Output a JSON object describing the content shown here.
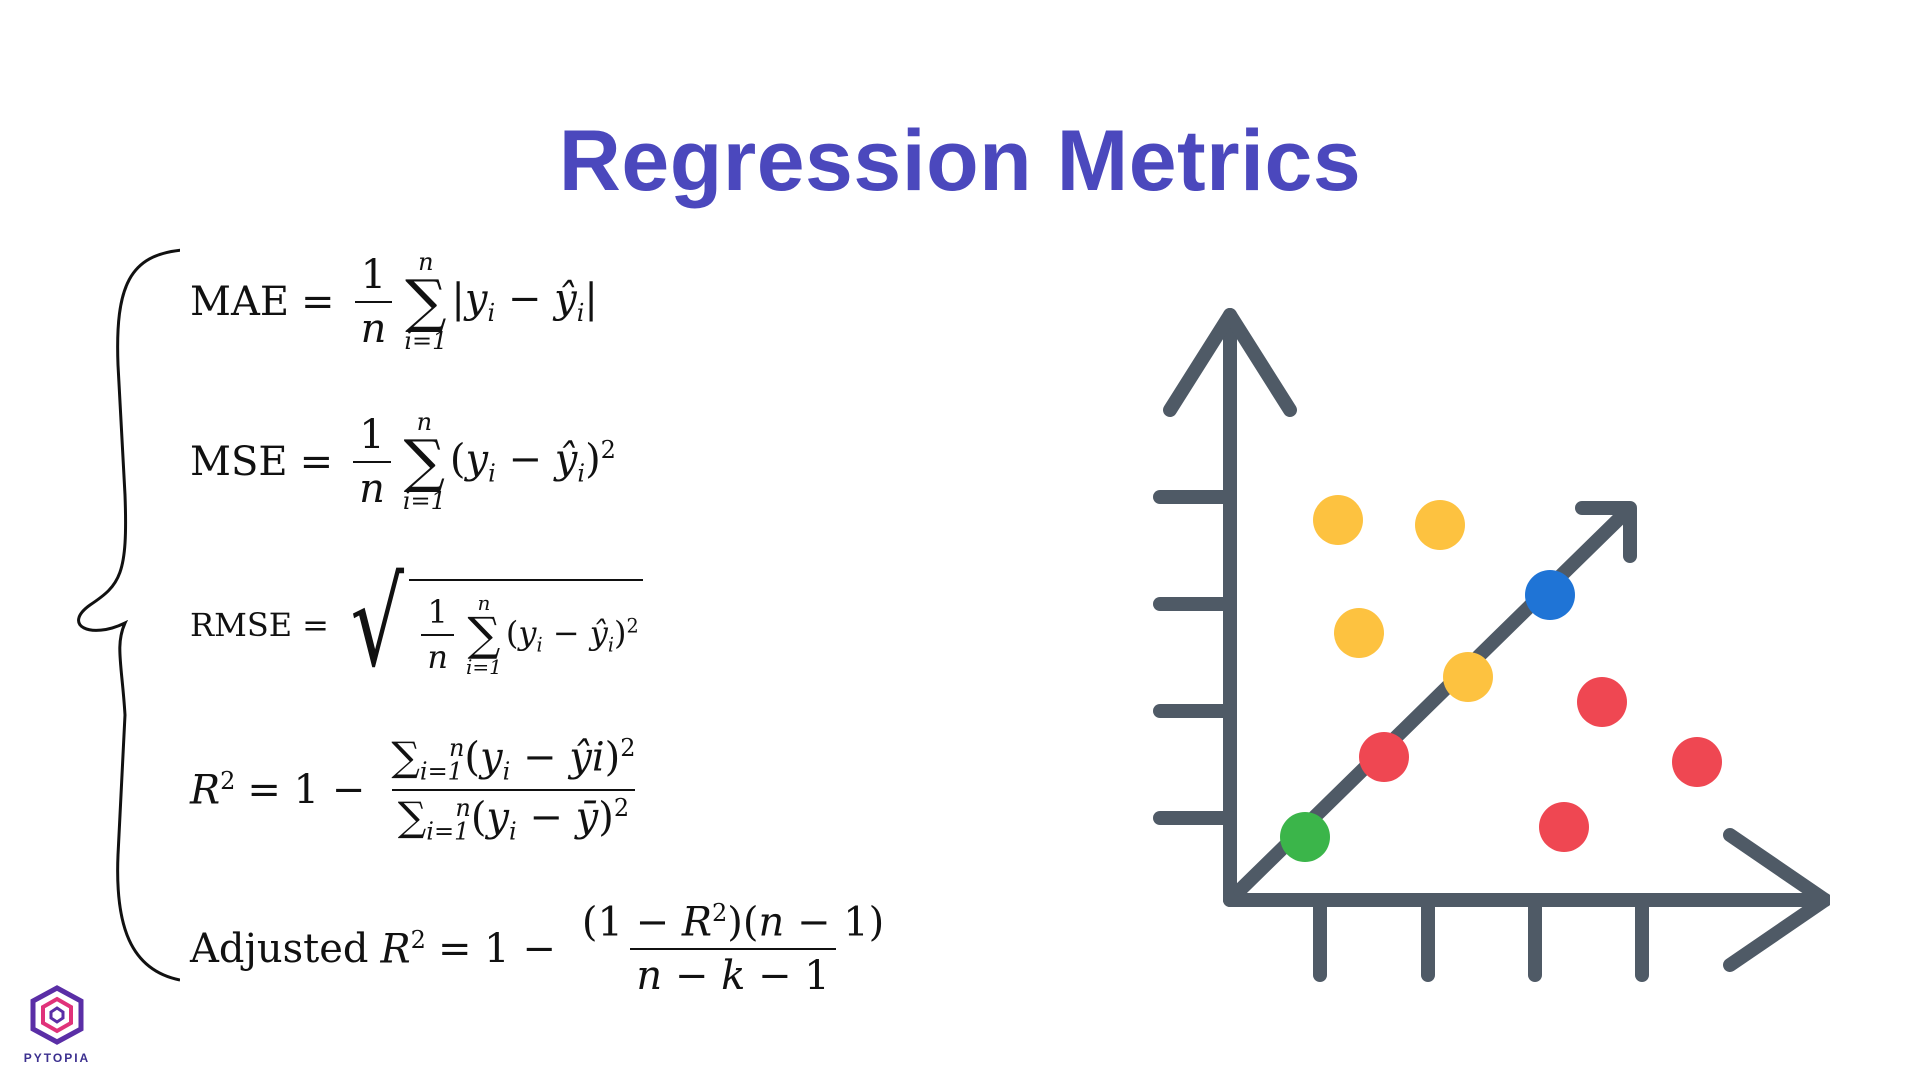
{
  "title": "Regression Metrics",
  "formulas": {
    "mae_label": "MAE",
    "mse_label": "MSE",
    "rmse_label": "RMSE",
    "adjusted_label": "Adjusted"
  },
  "logo": {
    "text": "PYTOPIA"
  },
  "colors": {
    "title": "#4b48bd",
    "axis": "#4f5a66",
    "yellow": "#fdc240",
    "red": "#ef4752",
    "blue": "#1f74d6",
    "green": "#3bb54a",
    "logo_purple": "#5a2ea6",
    "logo_pink": "#e0327a"
  }
}
